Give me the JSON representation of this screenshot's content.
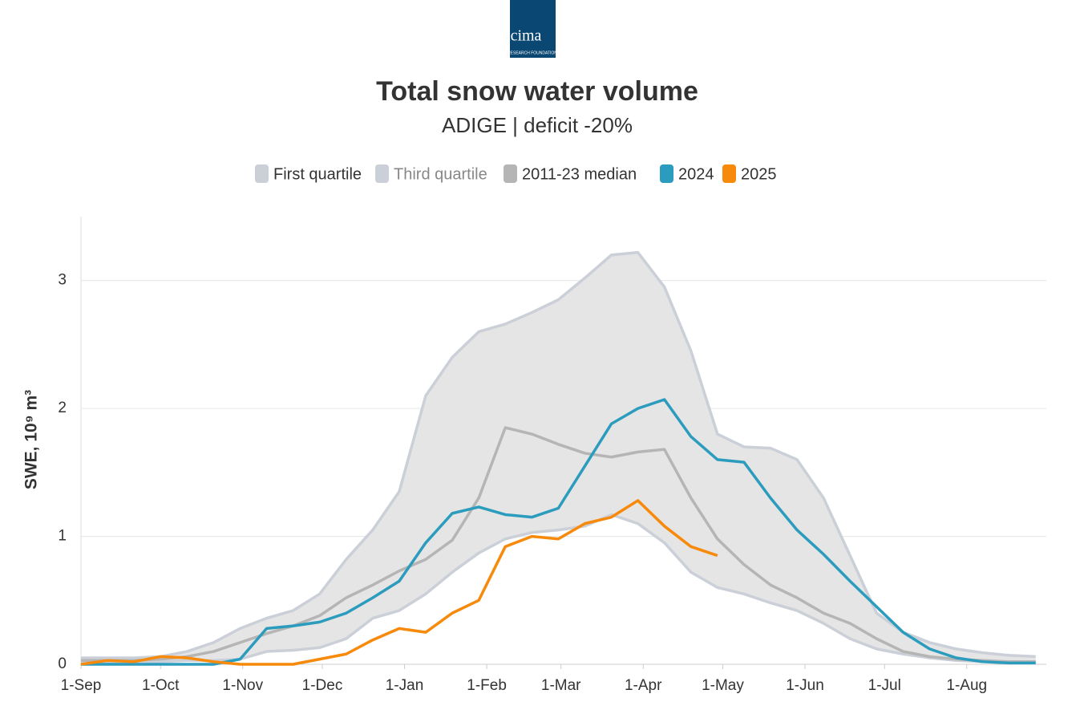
{
  "logo": {
    "name": "cima",
    "subtitle": "RESEARCH FOUNDATION"
  },
  "chart_data": {
    "type": "line",
    "title": "Total snow water volume",
    "subtitle": "ADIGE | deficit -20%",
    "y_label": "SWE, 10⁹ m³",
    "x": [
      0,
      10,
      20,
      30,
      40,
      50,
      60,
      70,
      80,
      90,
      100,
      110,
      120,
      130,
      140,
      150,
      160,
      170,
      180,
      190,
      200,
      210,
      220,
      230,
      240,
      250,
      260,
      270,
      280,
      290,
      300,
      310,
      320,
      330,
      340,
      350,
      360
    ],
    "xlim": [
      0,
      364
    ],
    "xticks": [
      {
        "value": 0,
        "label": "1-Sep"
      },
      {
        "value": 30,
        "label": "1-Oct"
      },
      {
        "value": 61,
        "label": "1-Nov"
      },
      {
        "value": 91,
        "label": "1-Dec"
      },
      {
        "value": 122,
        "label": "1-Jan"
      },
      {
        "value": 153,
        "label": "1-Feb"
      },
      {
        "value": 181,
        "label": "1-Mar"
      },
      {
        "value": 212,
        "label": "1-Apr"
      },
      {
        "value": 242,
        "label": "1-May"
      },
      {
        "value": 273,
        "label": "1-Jun"
      },
      {
        "value": 303,
        "label": "1-Jul"
      },
      {
        "value": 334,
        "label": "1-Aug"
      }
    ],
    "ylim": [
      0,
      3.5
    ],
    "yticks": [
      0,
      1,
      2,
      3
    ],
    "grid": true,
    "band_fill": "#e5e5e5",
    "series": [
      {
        "name": "First quartile",
        "color": "#cbd0d8",
        "values": [
          0.02,
          0.02,
          0.02,
          0.02,
          0.03,
          0.03,
          0.04,
          0.1,
          0.11,
          0.13,
          0.2,
          0.36,
          0.42,
          0.55,
          0.72,
          0.87,
          0.98,
          1.03,
          1.05,
          1.08,
          1.17,
          1.1,
          0.95,
          0.72,
          0.6,
          0.55,
          0.48,
          0.42,
          0.32,
          0.2,
          0.12,
          0.08,
          0.05,
          0.03,
          0.02,
          0.02,
          0.01
        ]
      },
      {
        "name": "Third quartile",
        "color": "#cbd0d8",
        "text_color": "#888888",
        "values": [
          0.05,
          0.05,
          0.05,
          0.06,
          0.1,
          0.17,
          0.28,
          0.36,
          0.42,
          0.55,
          0.82,
          1.05,
          1.35,
          2.1,
          2.4,
          2.6,
          2.66,
          2.75,
          2.85,
          3.02,
          3.2,
          3.22,
          2.95,
          2.45,
          1.8,
          1.7,
          1.69,
          1.6,
          1.3,
          0.85,
          0.4,
          0.25,
          0.17,
          0.12,
          0.09,
          0.07,
          0.06
        ]
      },
      {
        "name": "2011-23 median",
        "color": "#b5b5b5",
        "values": [
          0.03,
          0.03,
          0.03,
          0.04,
          0.06,
          0.1,
          0.17,
          0.24,
          0.3,
          0.38,
          0.52,
          0.62,
          0.73,
          0.82,
          0.97,
          1.3,
          1.85,
          1.8,
          1.72,
          1.65,
          1.62,
          1.66,
          1.68,
          1.3,
          0.98,
          0.78,
          0.62,
          0.52,
          0.4,
          0.32,
          0.2,
          0.1,
          0.06,
          0.04,
          0.03,
          0.02,
          0.02
        ]
      },
      {
        "name": "2024",
        "color": "#2b9cbd",
        "values": [
          0,
          0,
          0,
          0,
          0,
          0,
          0.04,
          0.28,
          0.3,
          0.33,
          0.4,
          0.52,
          0.65,
          0.95,
          1.18,
          1.23,
          1.17,
          1.15,
          1.22,
          1.55,
          1.88,
          2.0,
          2.07,
          1.78,
          1.6,
          1.58,
          1.3,
          1.05,
          0.86,
          0.65,
          0.45,
          0.25,
          0.12,
          0.05,
          0.02,
          0.01,
          0.01
        ]
      },
      {
        "name": "2025",
        "color": "#f7890b",
        "values": [
          0,
          0.03,
          0.02,
          0.06,
          0.05,
          0.02,
          0,
          0,
          0,
          0.04,
          0.08,
          0.19,
          0.28,
          0.25,
          0.4,
          0.5,
          0.92,
          1.0,
          0.98,
          1.1,
          1.15,
          1.28,
          1.08,
          0.92,
          0.85,
          null,
          null,
          null,
          null,
          null,
          null,
          null,
          null,
          null,
          null,
          null,
          null
        ]
      }
    ]
  }
}
